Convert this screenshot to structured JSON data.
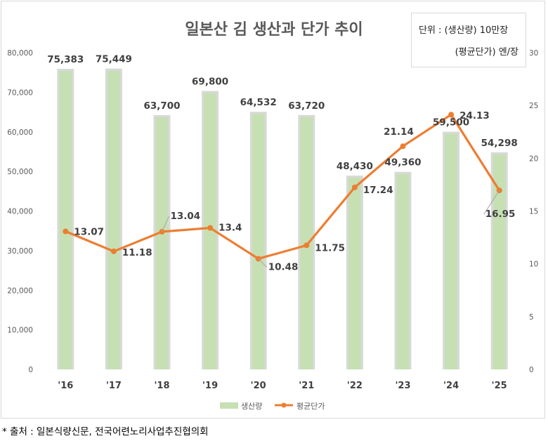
{
  "chart_data": {
    "type": "bar+line",
    "title": "일본산 김 생산과 단가 추이",
    "categories": [
      "'16",
      "'17",
      "'18",
      "'19",
      "'20",
      "'21",
      "'22",
      "'23",
      "'24",
      "'25"
    ],
    "series": [
      {
        "name": "생산량",
        "type": "bar",
        "axis": "left",
        "color": "#c6e0b4",
        "values": [
          75383,
          75449,
          63700,
          69800,
          64532,
          63720,
          48430,
          49360,
          59500,
          54298
        ],
        "labels": [
          "75,383",
          "75,449",
          "63,700",
          "69,800",
          "64,532",
          "63,720",
          "48,430",
          "49,360",
          "59,500",
          "54,298"
        ]
      },
      {
        "name": "평균단가",
        "type": "line",
        "axis": "right",
        "color": "#ed7d31",
        "values": [
          13.07,
          11.18,
          13.04,
          13.4,
          10.48,
          11.75,
          17.24,
          21.14,
          24.13,
          16.95
        ],
        "labels": [
          "13.07",
          "11.18",
          "13.04",
          "13.4",
          "10.48",
          "11.75",
          "17.24",
          "21.14",
          "24.13",
          "16.95"
        ]
      }
    ],
    "y_left": {
      "min": 0,
      "max": 80000,
      "step": 10000,
      "ticks": [
        "0",
        "10,000",
        "20,000",
        "30,000",
        "40,000",
        "50,000",
        "60,000",
        "70,000",
        "80,000"
      ]
    },
    "y_right": {
      "min": 0,
      "max": 30,
      "step": 5,
      "ticks": [
        "0",
        "5",
        "10",
        "15",
        "20",
        "25",
        "30"
      ]
    },
    "grid": false,
    "legend_position": "bottom"
  },
  "unit_box": {
    "line1": "단위 : (생산량) 10만장",
    "line2": "(평균단가) 엔/장"
  },
  "source_note": "* 출처 : 일본식량신문, 전국어련노리사업추진협의회",
  "colors": {
    "bar_fill": "#c6e0b4",
    "bar_shadow": "#d9d9d9",
    "line": "#ed7d31",
    "title": "#595959"
  }
}
